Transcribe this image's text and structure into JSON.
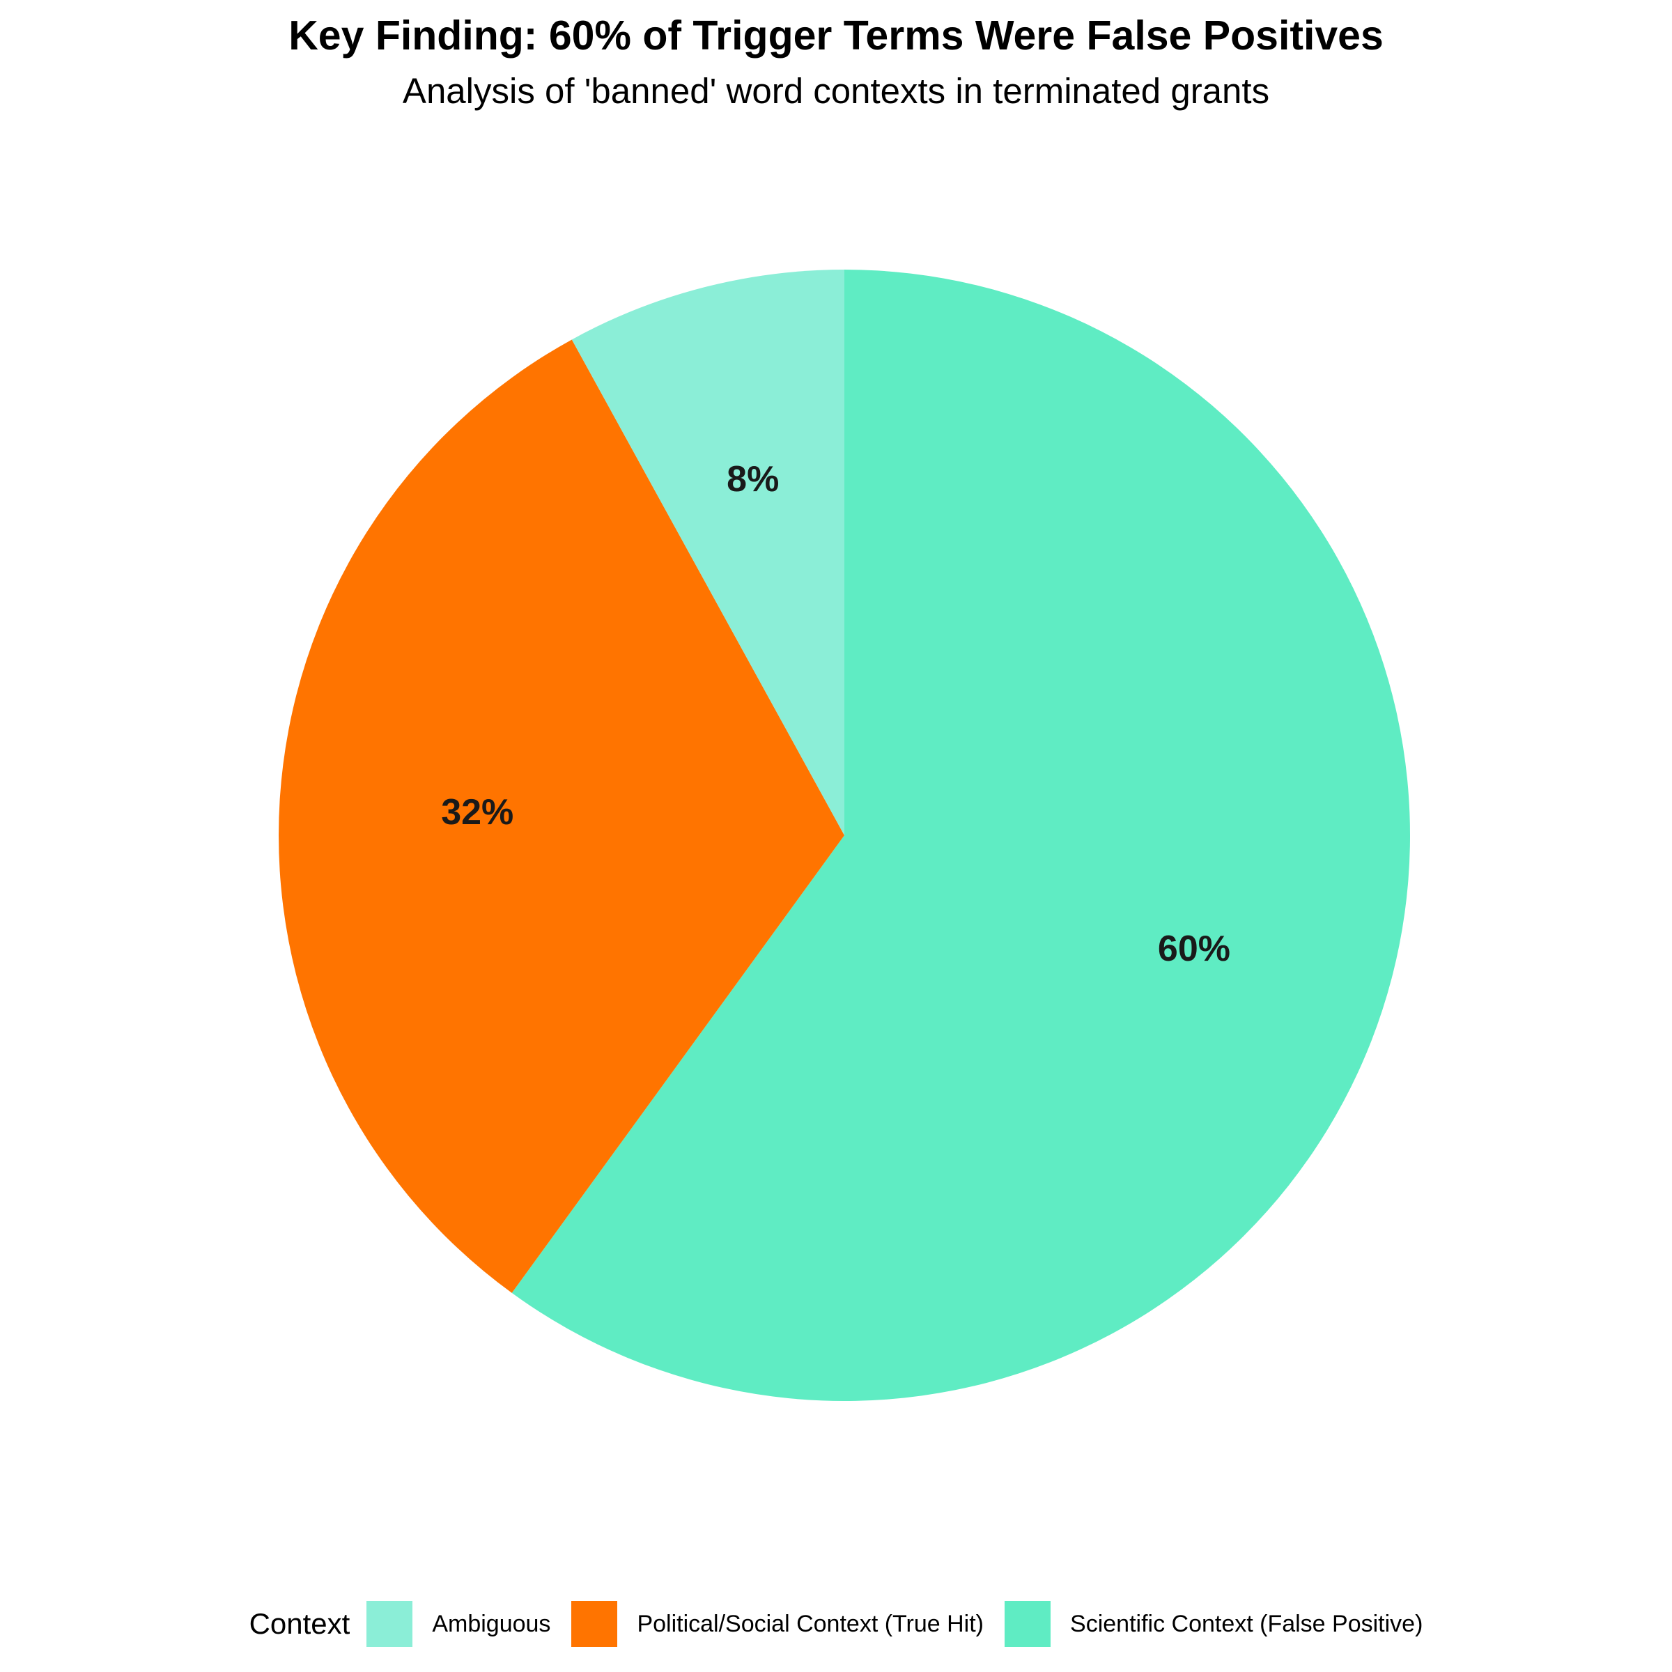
{
  "chart_data": {
    "type": "pie",
    "title": "Key Finding: 60% of Trigger Terms Were False Positives",
    "subtitle": "Analysis of 'banned' word contexts in terminated grants",
    "legend_title": "Context",
    "legend_position": "bottom",
    "start": "top, clockwise",
    "slices": [
      {
        "name": "Ambiguous",
        "value": 8,
        "label": "8%",
        "color": "#8BEED7"
      },
      {
        "name": "Political/Social Context (True Hit)",
        "value": 32,
        "label": "32%",
        "color": "#FF7400"
      },
      {
        "name": "Scientific Context (False Positive)",
        "value": 60,
        "label": "60%",
        "color": "#5FECC3"
      }
    ],
    "slice_order": [
      "Scientific Context (False Positive)",
      "Political/Social Context (True Hit)",
      "Ambiguous"
    ]
  }
}
